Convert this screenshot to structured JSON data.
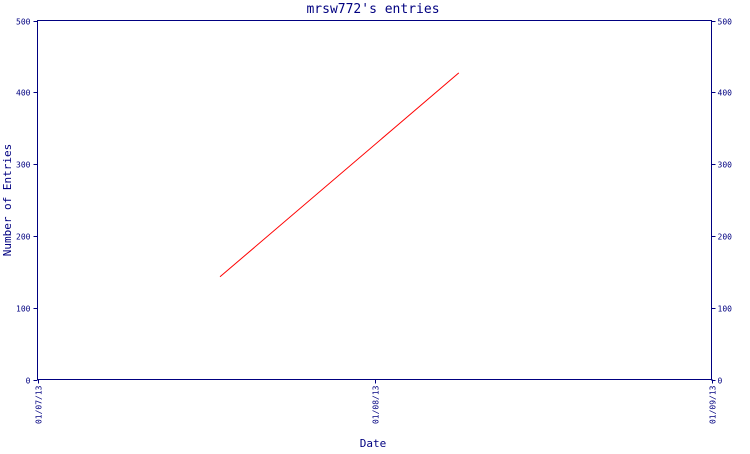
{
  "chart_data": {
    "type": "line",
    "title": "mrsw772's entries",
    "xlabel": "Date",
    "ylabel": "Number of Entries",
    "x_ticks": [
      "01/07/13",
      "01/08/13",
      "01/09/13"
    ],
    "y_ticks": [
      0,
      100,
      200,
      300,
      400,
      500
    ],
    "ylim": [
      0,
      500
    ],
    "grid": false,
    "series": [
      {
        "x": [
          "01/07/13 13:00",
          "01/08/13 06:00"
        ],
        "values": [
          143,
          427
        ],
        "color": "#ff0000"
      }
    ],
    "colors": {
      "axis": "#000080",
      "text": "#000080",
      "line": "#ff0000"
    }
  }
}
